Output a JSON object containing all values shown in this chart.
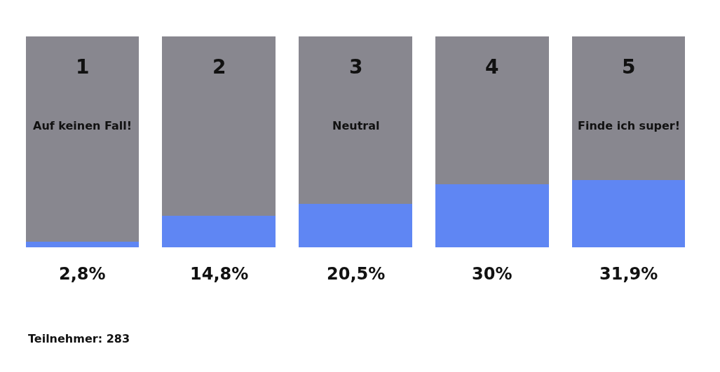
{
  "chart_data": {
    "type": "bar",
    "stacked": true,
    "categories": [
      "1\nAuf keinen Fall!",
      "2",
      "3\nNeutral",
      "4",
      "5\nFinde ich super!"
    ],
    "series": [
      {
        "color": "#5f86f3",
        "values": [
          2.8,
          14.8,
          20.5,
          30,
          31.9
        ],
        "value_labels": [
          "2,8%",
          "14,8%",
          "20,5%",
          "30%",
          "31,9%"
        ]
      },
      {
        "color": "#88878f",
        "values": [
          97.2,
          85.2,
          79.5,
          70,
          68.1
        ]
      }
    ],
    "ylim": [
      0,
      100
    ],
    "tick_labels": "x",
    "annotations": [
      "Teilnehmer: 283"
    ]
  }
}
